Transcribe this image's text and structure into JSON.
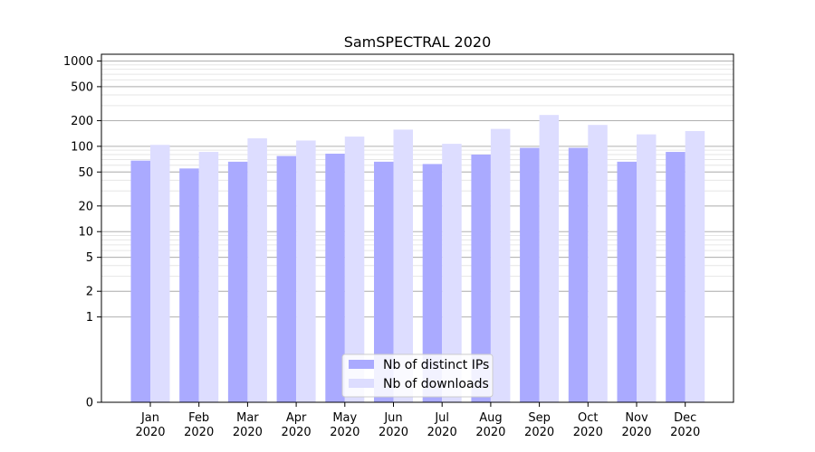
{
  "chart_data": {
    "type": "bar",
    "title": "SamSPECTRAL 2020",
    "xlabel": "",
    "ylabel": "",
    "yscale": "symlog",
    "ylim": [
      0,
      1200
    ],
    "yticks": [
      0,
      1,
      2,
      5,
      10,
      20,
      50,
      100,
      200,
      500,
      1000
    ],
    "grid": "horizontal",
    "legend_position": "bottom-center",
    "categories": [
      [
        "Jan",
        "2020"
      ],
      [
        "Feb",
        "2020"
      ],
      [
        "Mar",
        "2020"
      ],
      [
        "Apr",
        "2020"
      ],
      [
        "May",
        "2020"
      ],
      [
        "Jun",
        "2020"
      ],
      [
        "Jul",
        "2020"
      ],
      [
        "Aug",
        "2020"
      ],
      [
        "Sep",
        "2020"
      ],
      [
        "Oct",
        "2020"
      ],
      [
        "Nov",
        "2020"
      ],
      [
        "Dec",
        "2020"
      ]
    ],
    "series": [
      {
        "name": "Nb of distinct IPs",
        "color": "#aaaaff",
        "values": [
          68,
          55,
          66,
          77,
          82,
          66,
          62,
          80,
          96,
          96,
          66,
          86
        ]
      },
      {
        "name": "Nb of downloads",
        "color": "#ddddff",
        "values": [
          104,
          86,
          124,
          117,
          130,
          157,
          107,
          160,
          233,
          178,
          138,
          151
        ]
      }
    ]
  }
}
